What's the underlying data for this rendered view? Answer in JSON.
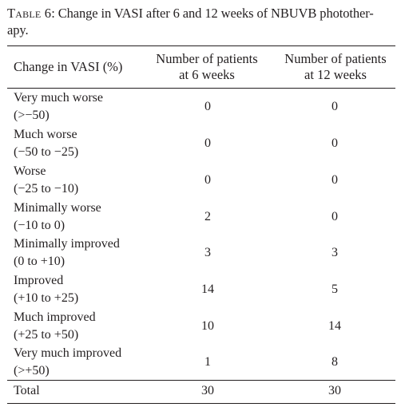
{
  "caption": {
    "label": "Table 6",
    "text": ": Change in VASI after 6 and 12 weeks of NBUVB photother-",
    "text2": "apy."
  },
  "table": {
    "headers": {
      "col1": "Change in VASI (%)",
      "col2_line1": "Number of patients",
      "col2_line2": "at 6 weeks",
      "col3_line1": "Number of patients",
      "col3_line2": "at 12 weeks"
    },
    "rows": [
      {
        "label1": "Very much worse",
        "label2": "(>−50)",
        "w6": "0",
        "w12": "0"
      },
      {
        "label1": "Much worse",
        "label2": "(−50 to −25)",
        "w6": "0",
        "w12": "0"
      },
      {
        "label1": "Worse",
        "label2": "(−25 to −10)",
        "w6": "0",
        "w12": "0"
      },
      {
        "label1": "Minimally worse",
        "label2": "(−10 to 0)",
        "w6": "2",
        "w12": "0"
      },
      {
        "label1": "Minimally improved",
        "label2": "(0 to +10)",
        "w6": "3",
        "w12": "3"
      },
      {
        "label1": "Improved",
        "label2": "(+10 to +25)",
        "w6": "14",
        "w12": "5"
      },
      {
        "label1": "Much improved",
        "label2": "(+25 to +50)",
        "w6": "10",
        "w12": "14"
      },
      {
        "label1": "Very much improved",
        "label2": "(>+50)",
        "w6": "1",
        "w12": "8"
      }
    ],
    "total": {
      "label": "Total",
      "w6": "30",
      "w12": "30"
    }
  }
}
